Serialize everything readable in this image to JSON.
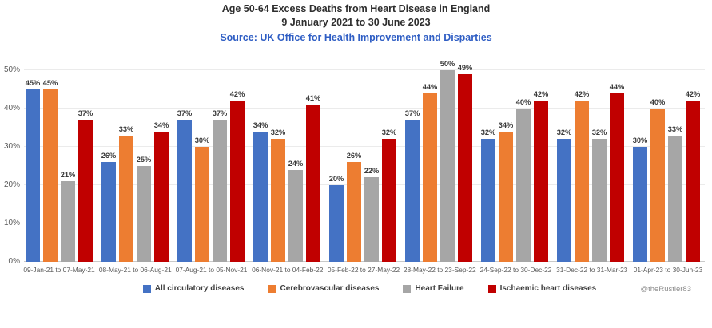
{
  "chart_data": {
    "type": "bar",
    "title": "Age 50-64 Excess Deaths from Heart Disease in England",
    "subtitle": "9 January 2021 to 30 June 2023",
    "source": "Source: UK Office for Health Improvement and Disparties",
    "attribution": "@theRustler83",
    "categories": [
      "09-Jan-21 to 07-May-21",
      "08-May-21 to 06-Aug-21",
      "07-Aug-21 to 05-Nov-21",
      "06-Nov-21 to 04-Feb-22",
      "05-Feb-22 to 27-May-22",
      "28-May-22 to 23-Sep-22",
      "24-Sep-22 to 30-Dec-22",
      "31-Dec-22 to 31-Mar-23",
      "01-Apr-23 to 30-Jun-23"
    ],
    "series": [
      {
        "name": "All circulatory diseases",
        "color": "#4472C4",
        "values": [
          45,
          26,
          37,
          34,
          20,
          37,
          32,
          32,
          30
        ]
      },
      {
        "name": "Cerebrovascular diseases",
        "color": "#ED7D31",
        "values": [
          45,
          33,
          30,
          32,
          26,
          44,
          34,
          42,
          40
        ]
      },
      {
        "name": "Heart Failure",
        "color": "#A6A6A6",
        "values": [
          21,
          25,
          37,
          24,
          22,
          50,
          40,
          32,
          33
        ]
      },
      {
        "name": "Ischaemic heart diseases",
        "color": "#C00000",
        "values": [
          37,
          34,
          42,
          41,
          32,
          49,
          42,
          44,
          42
        ]
      }
    ],
    "data_label_format": "{v}%",
    "ylim": [
      0,
      50
    ],
    "ytick_step": 10,
    "yticks": [
      "0%",
      "10%",
      "20%",
      "30%",
      "40%",
      "50%"
    ],
    "grid": "horizontal",
    "legend_position": "bottom",
    "colors": {
      "background": "#FFFFFF",
      "title_text": "#2E2E2E",
      "source_text": "#2F5EC4",
      "axis_label_text": "#595959",
      "bar_label_text": "#3B3B3B",
      "legend_text": "#404040",
      "attribution_text": "#8C8C8C",
      "gridline": "#EBEBEB",
      "axis_line": "#C9C9C9"
    }
  }
}
